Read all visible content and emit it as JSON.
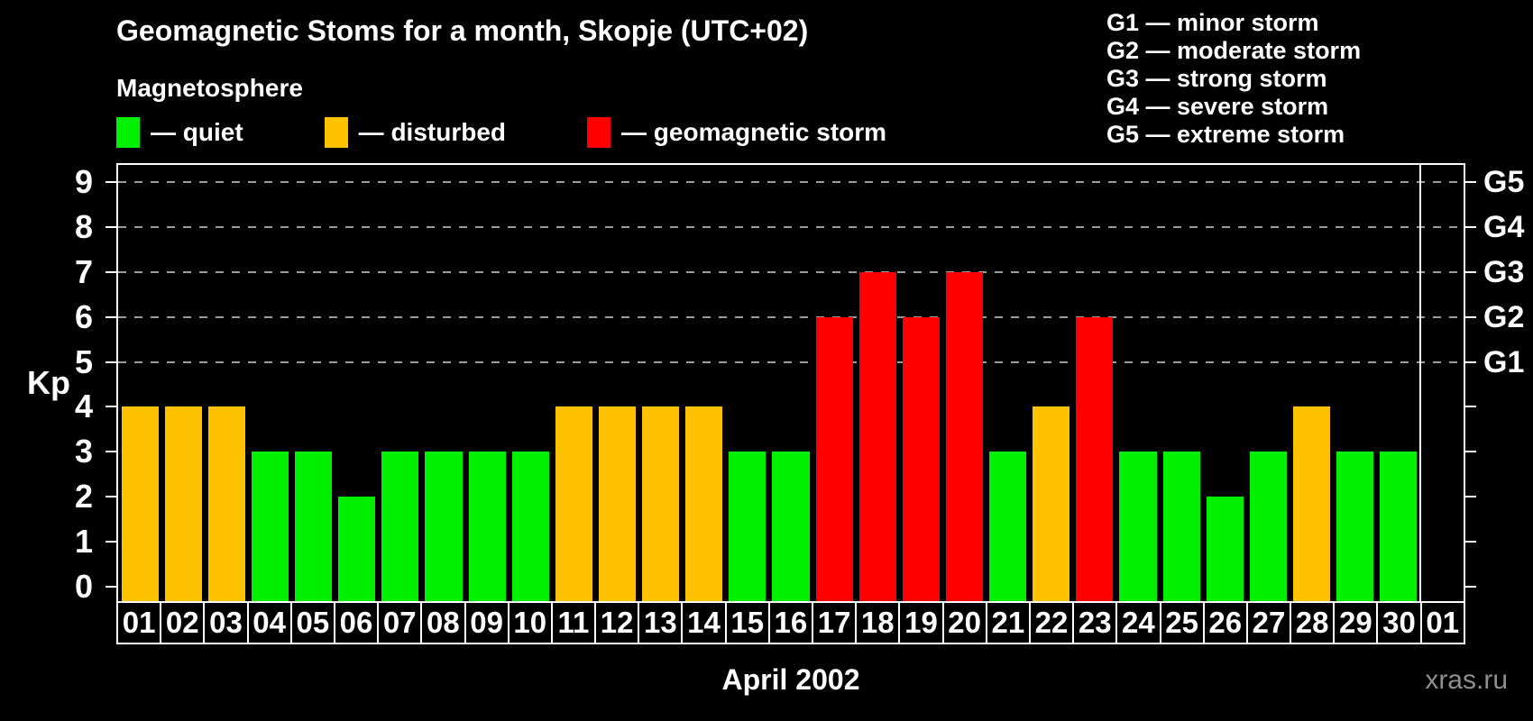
{
  "header": {
    "title": "Geomagnetic Stoms for a month, Skopje (UTC+02)",
    "subtitle": "Magnetosphere"
  },
  "legend": {
    "items": [
      {
        "key": "quiet",
        "label": "— quiet",
        "color": "#00F000"
      },
      {
        "key": "disturbed",
        "label": "— disturbed",
        "color": "#FFC200"
      },
      {
        "key": "storm",
        "label": "— geomagnetic storm",
        "color": "#FF0000"
      }
    ]
  },
  "g_legend": [
    "G1 — minor storm",
    "G2 — moderate storm",
    "G3 — strong storm",
    "G4 — severe storm",
    "G5 — extreme storm"
  ],
  "watermark": "xras.ru",
  "chart_data": {
    "type": "bar",
    "title": "Geomagnetic Stoms for a month, Skopje (UTC+02)",
    "xlabel": "April 2002",
    "ylabel": "Kp",
    "ylim": [
      0,
      9
    ],
    "grid": true,
    "legend_position": "top-left",
    "y_ticks": [
      0,
      1,
      2,
      3,
      4,
      5,
      6,
      7,
      8,
      9
    ],
    "grid_levels": [
      5,
      6,
      7,
      8,
      9
    ],
    "right_axis": [
      {
        "value": 5,
        "label": "G1"
      },
      {
        "value": 6,
        "label": "G2"
      },
      {
        "value": 7,
        "label": "G3"
      },
      {
        "value": 8,
        "label": "G4"
      },
      {
        "value": 9,
        "label": "G5"
      }
    ],
    "categories": [
      "01",
      "02",
      "03",
      "04",
      "05",
      "06",
      "07",
      "08",
      "09",
      "10",
      "11",
      "12",
      "13",
      "14",
      "15",
      "16",
      "17",
      "18",
      "19",
      "20",
      "21",
      "22",
      "23",
      "24",
      "25",
      "26",
      "27",
      "28",
      "29",
      "30",
      "01"
    ],
    "values": [
      4,
      4,
      4,
      3,
      3,
      2,
      3,
      3,
      3,
      3,
      4,
      4,
      4,
      4,
      3,
      3,
      6,
      7,
      6,
      7,
      3,
      4,
      6,
      3,
      3,
      2,
      3,
      4,
      3,
      3,
      null
    ],
    "statuses": [
      "disturbed",
      "disturbed",
      "disturbed",
      "quiet",
      "quiet",
      "quiet",
      "quiet",
      "quiet",
      "quiet",
      "quiet",
      "disturbed",
      "disturbed",
      "disturbed",
      "disturbed",
      "quiet",
      "quiet",
      "storm",
      "storm",
      "storm",
      "storm",
      "quiet",
      "disturbed",
      "storm",
      "quiet",
      "quiet",
      "quiet",
      "quiet",
      "disturbed",
      "quiet",
      "quiet",
      null
    ],
    "separator_after_index": 29
  }
}
